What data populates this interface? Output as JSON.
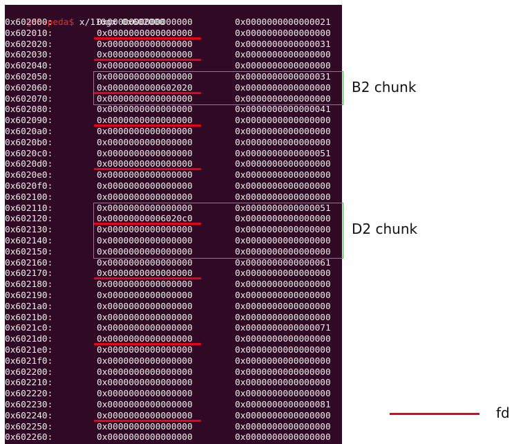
{
  "terminal": {
    "prompt": "gdb-peda$",
    "command": " x/110gx 0x602000",
    "rows": [
      {
        "addr": "0x602000:",
        "v1": "0x0000000000000000",
        "v2": "0x0000000000000021"
      },
      {
        "addr": "0x602010:",
        "v1": "0x0000000000000000",
        "v2": "0x0000000000000000",
        "fd": true
      },
      {
        "addr": "0x602020:",
        "v1": "0x0000000000000000",
        "v2": "0x0000000000000031"
      },
      {
        "addr": "0x602030:",
        "v1": "0x0000000000000000",
        "v2": "0x0000000000000000",
        "fd": true
      },
      {
        "addr": "0x602040:",
        "v1": "0x0000000000000000",
        "v2": "0x0000000000000000"
      },
      {
        "addr": "0x602050:",
        "v1": "0x0000000000000000",
        "v2": "0x0000000000000031"
      },
      {
        "addr": "0x602060:",
        "v1": "0x0000000000602020",
        "v2": "0x0000000000000000",
        "fd": true
      },
      {
        "addr": "0x602070:",
        "v1": "0x0000000000000000",
        "v2": "0x0000000000000000"
      },
      {
        "addr": "0x602080:",
        "v1": "0x0000000000000000",
        "v2": "0x0000000000000041"
      },
      {
        "addr": "0x602090:",
        "v1": "0x0000000000000000",
        "v2": "0x0000000000000000",
        "fd": true
      },
      {
        "addr": "0x6020a0:",
        "v1": "0x0000000000000000",
        "v2": "0x0000000000000000"
      },
      {
        "addr": "0x6020b0:",
        "v1": "0x0000000000000000",
        "v2": "0x0000000000000000"
      },
      {
        "addr": "0x6020c0:",
        "v1": "0x0000000000000000",
        "v2": "0x0000000000000051"
      },
      {
        "addr": "0x6020d0:",
        "v1": "0x0000000000000000",
        "v2": "0x0000000000000000",
        "fd": true
      },
      {
        "addr": "0x6020e0:",
        "v1": "0x0000000000000000",
        "v2": "0x0000000000000000"
      },
      {
        "addr": "0x6020f0:",
        "v1": "0x0000000000000000",
        "v2": "0x0000000000000000"
      },
      {
        "addr": "0x602100:",
        "v1": "0x0000000000000000",
        "v2": "0x0000000000000000"
      },
      {
        "addr": "0x602110:",
        "v1": "0x0000000000000000",
        "v2": "0x0000000000000051"
      },
      {
        "addr": "0x602120:",
        "v1": "0x00000000006020c0",
        "v2": "0x0000000000000000",
        "fd": true
      },
      {
        "addr": "0x602130:",
        "v1": "0x0000000000000000",
        "v2": "0x0000000000000000"
      },
      {
        "addr": "0x602140:",
        "v1": "0x0000000000000000",
        "v2": "0x0000000000000000"
      },
      {
        "addr": "0x602150:",
        "v1": "0x0000000000000000",
        "v2": "0x0000000000000000"
      },
      {
        "addr": "0x602160:",
        "v1": "0x0000000000000000",
        "v2": "0x0000000000000061"
      },
      {
        "addr": "0x602170:",
        "v1": "0x0000000000000000",
        "v2": "0x0000000000000000",
        "fd": true
      },
      {
        "addr": "0x602180:",
        "v1": "0x0000000000000000",
        "v2": "0x0000000000000000"
      },
      {
        "addr": "0x602190:",
        "v1": "0x0000000000000000",
        "v2": "0x0000000000000000"
      },
      {
        "addr": "0x6021a0:",
        "v1": "0x0000000000000000",
        "v2": "0x0000000000000000"
      },
      {
        "addr": "0x6021b0:",
        "v1": "0x0000000000000000",
        "v2": "0x0000000000000000"
      },
      {
        "addr": "0x6021c0:",
        "v1": "0x0000000000000000",
        "v2": "0x0000000000000071"
      },
      {
        "addr": "0x6021d0:",
        "v1": "0x0000000000000000",
        "v2": "0x0000000000000000",
        "fd": true
      },
      {
        "addr": "0x6021e0:",
        "v1": "0x0000000000000000",
        "v2": "0x0000000000000000"
      },
      {
        "addr": "0x6021f0:",
        "v1": "0x0000000000000000",
        "v2": "0x0000000000000000"
      },
      {
        "addr": "0x602200:",
        "v1": "0x0000000000000000",
        "v2": "0x0000000000000000"
      },
      {
        "addr": "0x602210:",
        "v1": "0x0000000000000000",
        "v2": "0x0000000000000000"
      },
      {
        "addr": "0x602220:",
        "v1": "0x0000000000000000",
        "v2": "0x0000000000000000"
      },
      {
        "addr": "0x602230:",
        "v1": "0x0000000000000000",
        "v2": "0x0000000000000081"
      },
      {
        "addr": "0x602240:",
        "v1": "0x0000000000000000",
        "v2": "0x0000000000000000",
        "fd": true
      },
      {
        "addr": "0x602250:",
        "v1": "0x0000000000000000",
        "v2": "0x0000000000000000"
      },
      {
        "addr": "0x602260:",
        "v1": "0x0000000000000000",
        "v2": "0x0000000000000000"
      }
    ]
  },
  "annotations": {
    "chunks": [
      {
        "label": "B2 chunk",
        "first_row": 5,
        "last_row": 7
      },
      {
        "label": "D2 chunk",
        "first_row": 17,
        "last_row": 21
      }
    ],
    "legend": {
      "label": "fd"
    }
  },
  "colors": {
    "terminal_bg": "#300a24",
    "prompt": "#ef2929",
    "text": "#eeeeec",
    "fd_marker": "#e8001c",
    "chunk_box": "#3bb34a"
  }
}
